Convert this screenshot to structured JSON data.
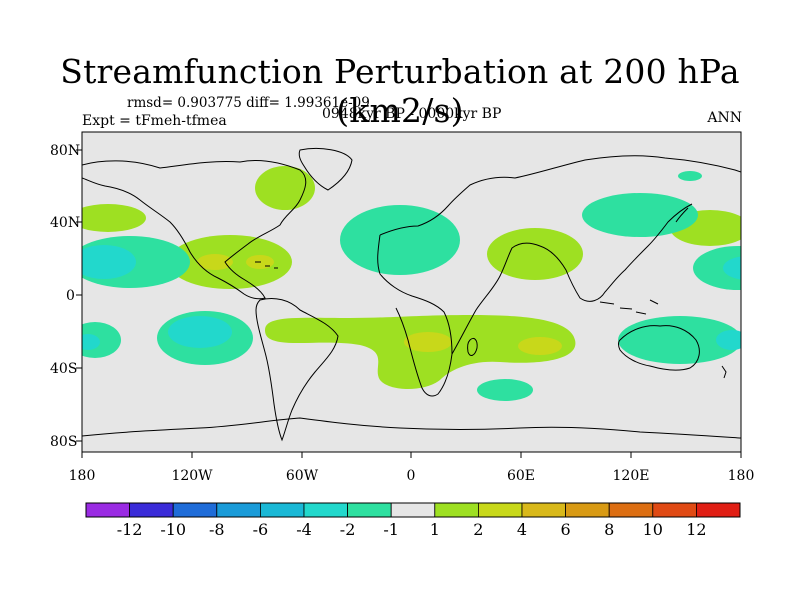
{
  "title": "Streamfunction Perturbation at 200 hPa (km2/s)",
  "stats": "rmsd= 0.903775 diff= 1.99361e-09",
  "period": "0948kyr BP - 0000kyr BP",
  "experiment": "Expt = tFmeh-tfmea",
  "season": "ANN",
  "lat_labels": [
    "80N",
    "40N",
    "0",
    "40S",
    "80S"
  ],
  "lon_labels": [
    "180",
    "120W",
    "60W",
    "0",
    "60E",
    "120E",
    "180"
  ],
  "colorbar": {
    "colors": [
      "#9a2be3",
      "#3a2bd8",
      "#1f6cd8",
      "#1a9bd8",
      "#1ab8d6",
      "#22d8cc",
      "#2ee0a0",
      "#e6e6e6",
      "#9ee022",
      "#c8d81a",
      "#d8b81a",
      "#d89a14",
      "#dc6e12",
      "#e04a14",
      "#e01e14"
    ],
    "labels": [
      "-12",
      "-10",
      "-8",
      "-6",
      "-4",
      "-2",
      "-1",
      "1",
      "2",
      "4",
      "6",
      "8",
      "10",
      "12"
    ]
  },
  "colors": {
    "ocean_bg": "#e6e6e6",
    "positive_weak": "#9ee022",
    "positive_mid": "#c8d81a",
    "positive_strong": "#d8b81a",
    "negative_weak": "#2ee0a0",
    "negative_mid": "#22d8cc",
    "negative_strong": "#1ab8d6"
  }
}
